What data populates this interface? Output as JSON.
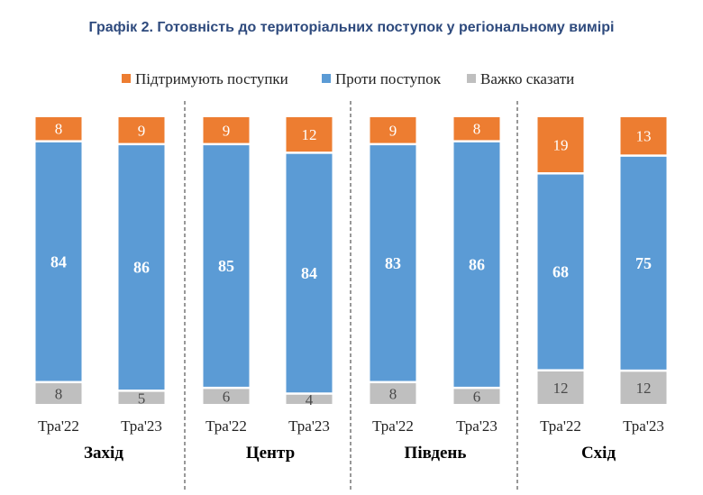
{
  "chart_data": {
    "type": "bar",
    "stacked": true,
    "percent": true,
    "title": "Графік 2. Готовність до територіальних поступок у регіональному вимірі",
    "legend_position": "top",
    "categories": [
      "Тра'22",
      "Тра'23",
      "Тра'22",
      "Тра'23",
      "Тра'22",
      "Тра'23",
      "Тра'22",
      "Тра'23"
    ],
    "groups": [
      {
        "name": "Захід",
        "categories": [
          "Тра'22",
          "Тра'23"
        ]
      },
      {
        "name": "Центр",
        "categories": [
          "Тра'22",
          "Тра'23"
        ]
      },
      {
        "name": "Південь",
        "categories": [
          "Тра'22",
          "Тра'23"
        ]
      },
      {
        "name": "Схід",
        "categories": [
          "Тра'22",
          "Тра'23"
        ]
      }
    ],
    "series": [
      {
        "name": "Важко сказати",
        "color": "#BFBFBF",
        "values": [
          8,
          5,
          6,
          4,
          8,
          6,
          12,
          12
        ]
      },
      {
        "name": "Проти поступок",
        "color": "#5B9BD5",
        "values": [
          84,
          86,
          85,
          84,
          83,
          86,
          68,
          75
        ]
      },
      {
        "name": "Підтримують поступки",
        "color": "#ED7D31",
        "values": [
          8,
          9,
          9,
          12,
          9,
          8,
          19,
          13
        ]
      }
    ],
    "legend_order": [
      "Підтримують поступки",
      "Проти поступок",
      "Важко сказати"
    ],
    "ylim": [
      0,
      100
    ],
    "grid": false
  }
}
